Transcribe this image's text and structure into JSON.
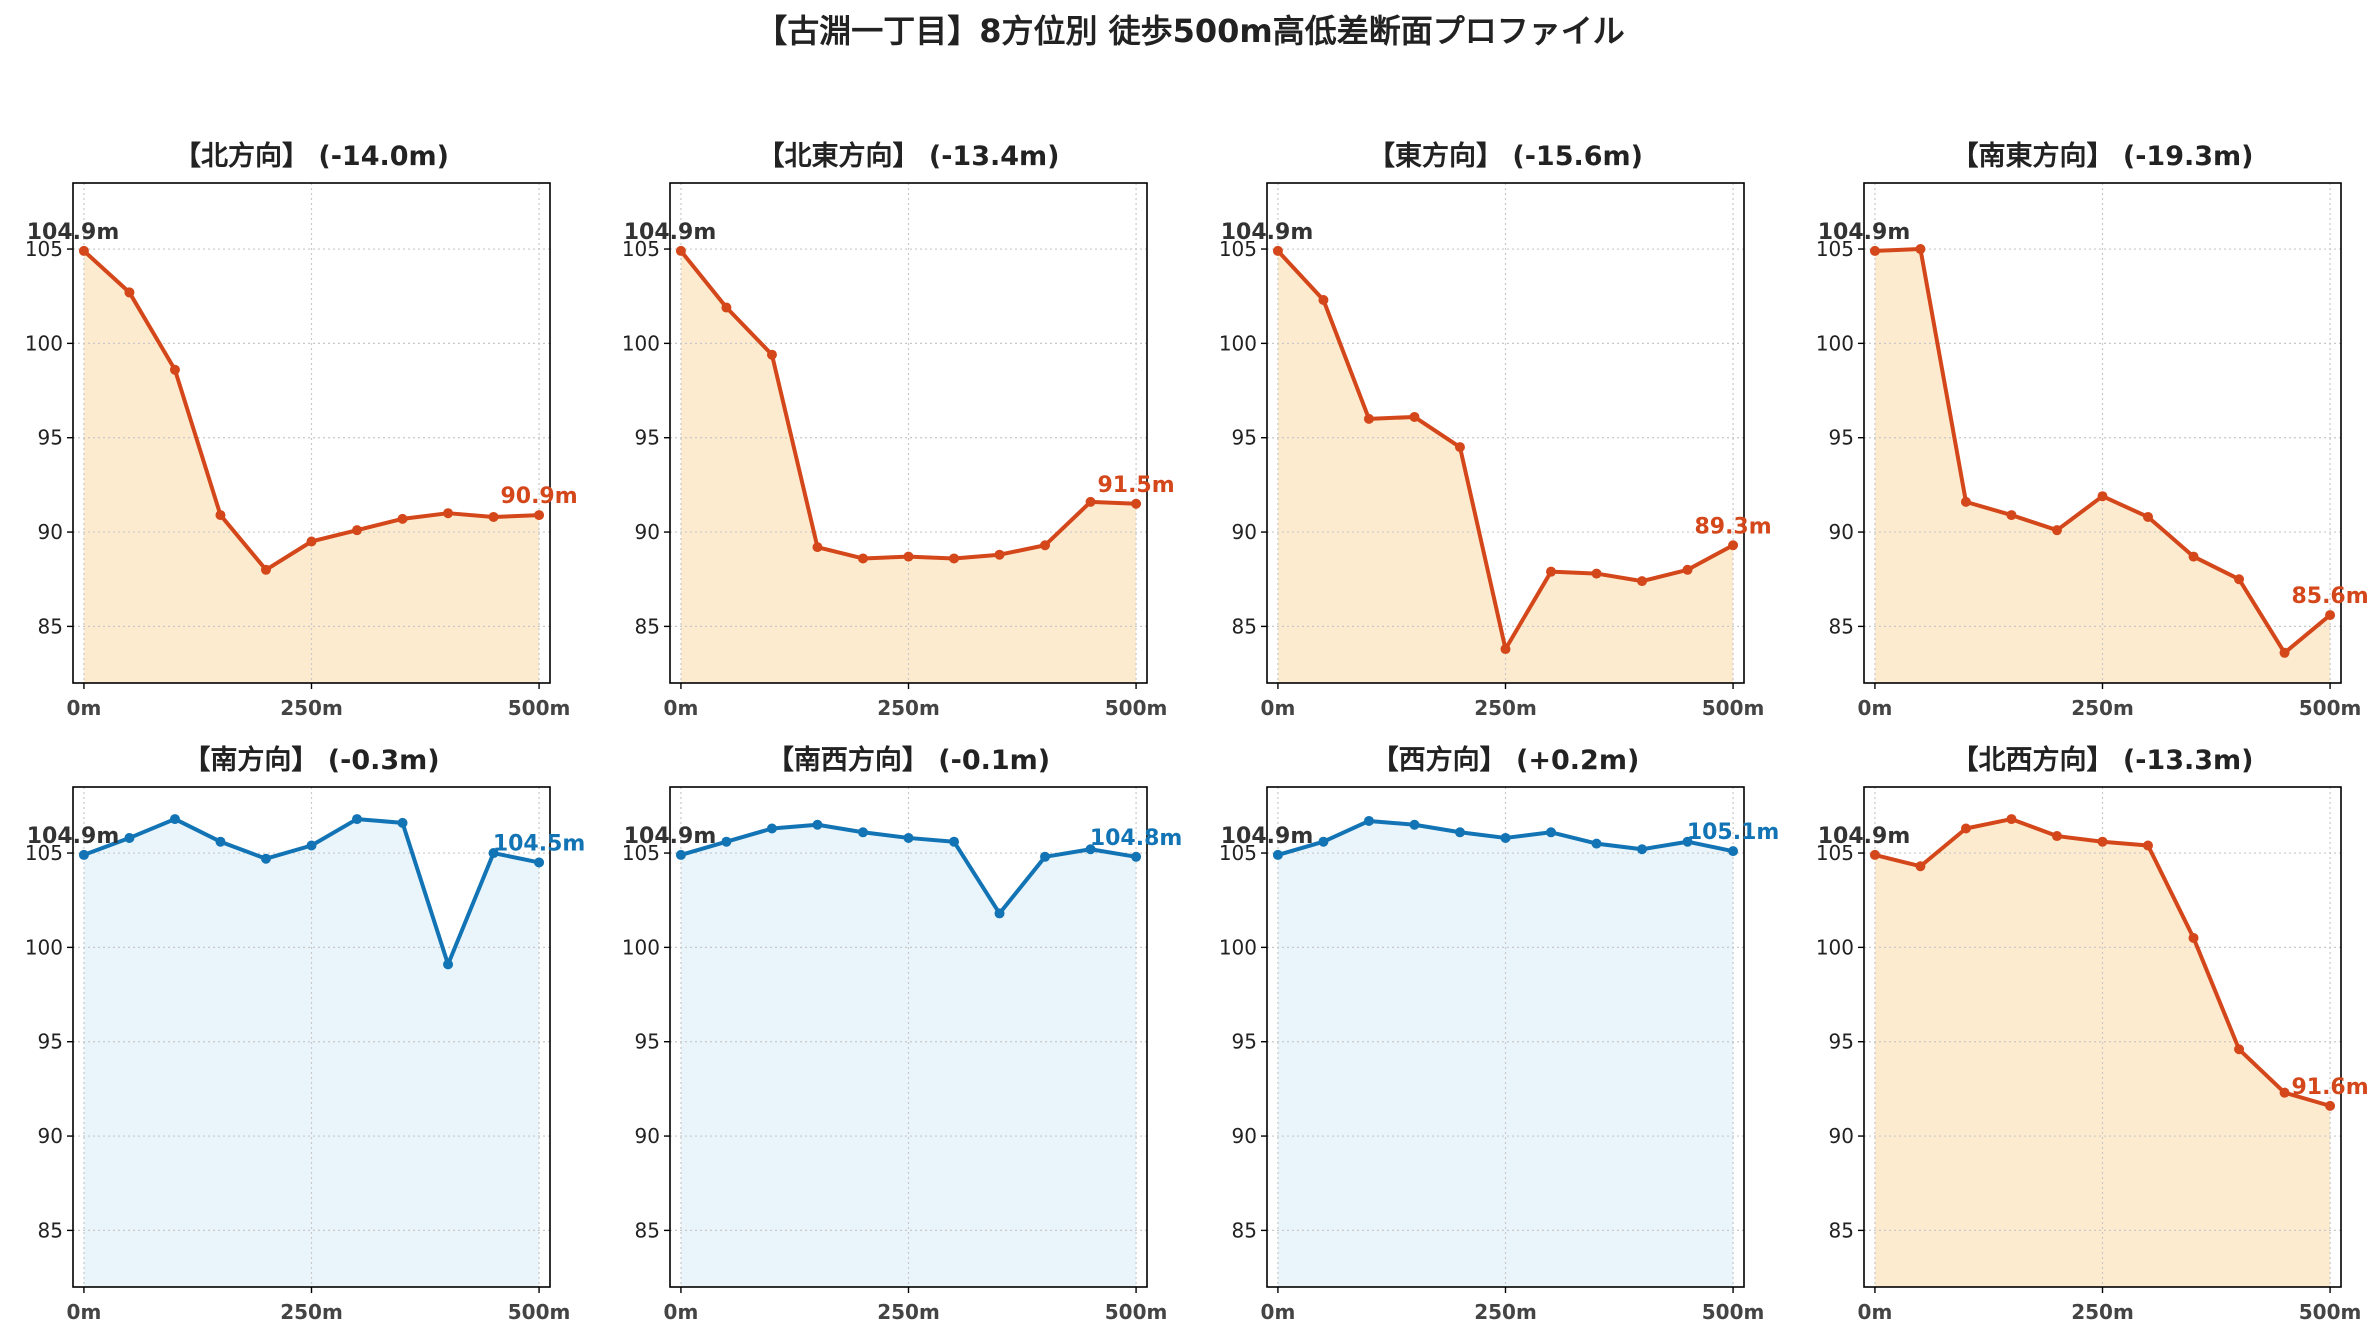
{
  "figure": {
    "title": "【古淵一丁目】8方位別 徒歩500m高低差断面プロファイル",
    "colors": {
      "down_line": "#d4471a",
      "down_fill": "#fdebd0",
      "flat_line": "#1274b5",
      "flat_fill": "#e9f5fb",
      "grid": "#c8c8c8",
      "axis": "#000000"
    }
  },
  "chart_data": [
    {
      "type": "area",
      "title": "【北方向】 (-14.0m)",
      "x": [
        0,
        50,
        100,
        150,
        200,
        250,
        300,
        350,
        400,
        450,
        500
      ],
      "values": [
        104.9,
        102.7,
        98.6,
        90.9,
        88.0,
        89.5,
        90.1,
        90.7,
        91.0,
        90.8,
        90.9
      ],
      "start_label": "104.9m",
      "end_label": "90.9m",
      "trend": "down",
      "ylim": [
        82,
        108.5
      ],
      "xlim": [
        -12,
        512
      ],
      "xticks": [
        "0m",
        "250m",
        "500m"
      ],
      "yticks": [
        85,
        90,
        95,
        100,
        105
      ],
      "grid": true
    },
    {
      "type": "area",
      "title": "【北東方向】 (-13.4m)",
      "x": [
        0,
        50,
        100,
        150,
        200,
        250,
        300,
        350,
        400,
        450,
        500
      ],
      "values": [
        104.9,
        101.9,
        99.4,
        89.2,
        88.6,
        88.7,
        88.6,
        88.8,
        89.3,
        91.6,
        91.5
      ],
      "start_label": "104.9m",
      "end_label": "91.5m",
      "trend": "down",
      "ylim": [
        82,
        108.5
      ],
      "xlim": [
        -12,
        512
      ],
      "xticks": [
        "0m",
        "250m",
        "500m"
      ],
      "yticks": [
        85,
        90,
        95,
        100,
        105
      ],
      "grid": true
    },
    {
      "type": "area",
      "title": "【東方向】 (-15.6m)",
      "x": [
        0,
        50,
        100,
        150,
        200,
        250,
        300,
        350,
        400,
        450,
        500
      ],
      "values": [
        104.9,
        102.3,
        96.0,
        96.1,
        94.5,
        83.8,
        87.9,
        87.8,
        87.4,
        88.0,
        89.3
      ],
      "start_label": "104.9m",
      "end_label": "89.3m",
      "trend": "down",
      "ylim": [
        82,
        108.5
      ],
      "xlim": [
        -12,
        512
      ],
      "xticks": [
        "0m",
        "250m",
        "500m"
      ],
      "yticks": [
        85,
        90,
        95,
        100,
        105
      ],
      "grid": true
    },
    {
      "type": "area",
      "title": "【南東方向】 (-19.3m)",
      "x": [
        0,
        50,
        100,
        150,
        200,
        250,
        300,
        350,
        400,
        450,
        500
      ],
      "values": [
        104.9,
        105.0,
        91.6,
        90.9,
        90.1,
        91.9,
        90.8,
        88.7,
        87.5,
        83.6,
        85.6
      ],
      "start_label": "104.9m",
      "end_label": "85.6m",
      "trend": "down",
      "ylim": [
        82,
        108.5
      ],
      "xlim": [
        -12,
        512
      ],
      "xticks": [
        "0m",
        "250m",
        "500m"
      ],
      "yticks": [
        85,
        90,
        95,
        100,
        105
      ],
      "grid": true
    },
    {
      "type": "area",
      "title": "【南方向】 (-0.3m)",
      "x": [
        0,
        50,
        100,
        150,
        200,
        250,
        300,
        350,
        400,
        450,
        500
      ],
      "values": [
        104.9,
        105.8,
        106.8,
        105.6,
        104.7,
        105.4,
        106.8,
        106.6,
        99.1,
        105.0,
        104.5
      ],
      "start_label": "104.9m",
      "end_label": "104.5m",
      "trend": "flat",
      "ylim": [
        82,
        108.5
      ],
      "xlim": [
        -12,
        512
      ],
      "xticks": [
        "0m",
        "250m",
        "500m"
      ],
      "yticks": [
        85,
        90,
        95,
        100,
        105
      ],
      "grid": true
    },
    {
      "type": "area",
      "title": "【南西方向】 (-0.1m)",
      "x": [
        0,
        50,
        100,
        150,
        200,
        250,
        300,
        350,
        400,
        450,
        500
      ],
      "values": [
        104.9,
        105.6,
        106.3,
        106.5,
        106.1,
        105.8,
        105.6,
        101.8,
        104.8,
        105.2,
        104.8
      ],
      "start_label": "104.9m",
      "end_label": "104.8m",
      "trend": "flat",
      "ylim": [
        82,
        108.5
      ],
      "xlim": [
        -12,
        512
      ],
      "xticks": [
        "0m",
        "250m",
        "500m"
      ],
      "yticks": [
        85,
        90,
        95,
        100,
        105
      ],
      "grid": true
    },
    {
      "type": "area",
      "title": "【西方向】 (+0.2m)",
      "x": [
        0,
        50,
        100,
        150,
        200,
        250,
        300,
        350,
        400,
        450,
        500
      ],
      "values": [
        104.9,
        105.6,
        106.7,
        106.5,
        106.1,
        105.8,
        106.1,
        105.5,
        105.2,
        105.6,
        105.1
      ],
      "start_label": "104.9m",
      "end_label": "105.1m",
      "trend": "flat",
      "ylim": [
        82,
        108.5
      ],
      "xlim": [
        -12,
        512
      ],
      "xticks": [
        "0m",
        "250m",
        "500m"
      ],
      "yticks": [
        85,
        90,
        95,
        100,
        105
      ],
      "grid": true
    },
    {
      "type": "area",
      "title": "【北西方向】 (-13.3m)",
      "x": [
        0,
        50,
        100,
        150,
        200,
        250,
        300,
        350,
        400,
        450,
        500
      ],
      "values": [
        104.9,
        104.3,
        106.3,
        106.8,
        105.9,
        105.6,
        105.4,
        100.5,
        94.6,
        92.3,
        91.6
      ],
      "start_label": "104.9m",
      "end_label": "91.6m",
      "trend": "down",
      "ylim": [
        82,
        108.5
      ],
      "xlim": [
        -12,
        512
      ],
      "xticks": [
        "0m",
        "250m",
        "500m"
      ],
      "yticks": [
        85,
        90,
        95,
        100,
        105
      ],
      "grid": true
    }
  ]
}
